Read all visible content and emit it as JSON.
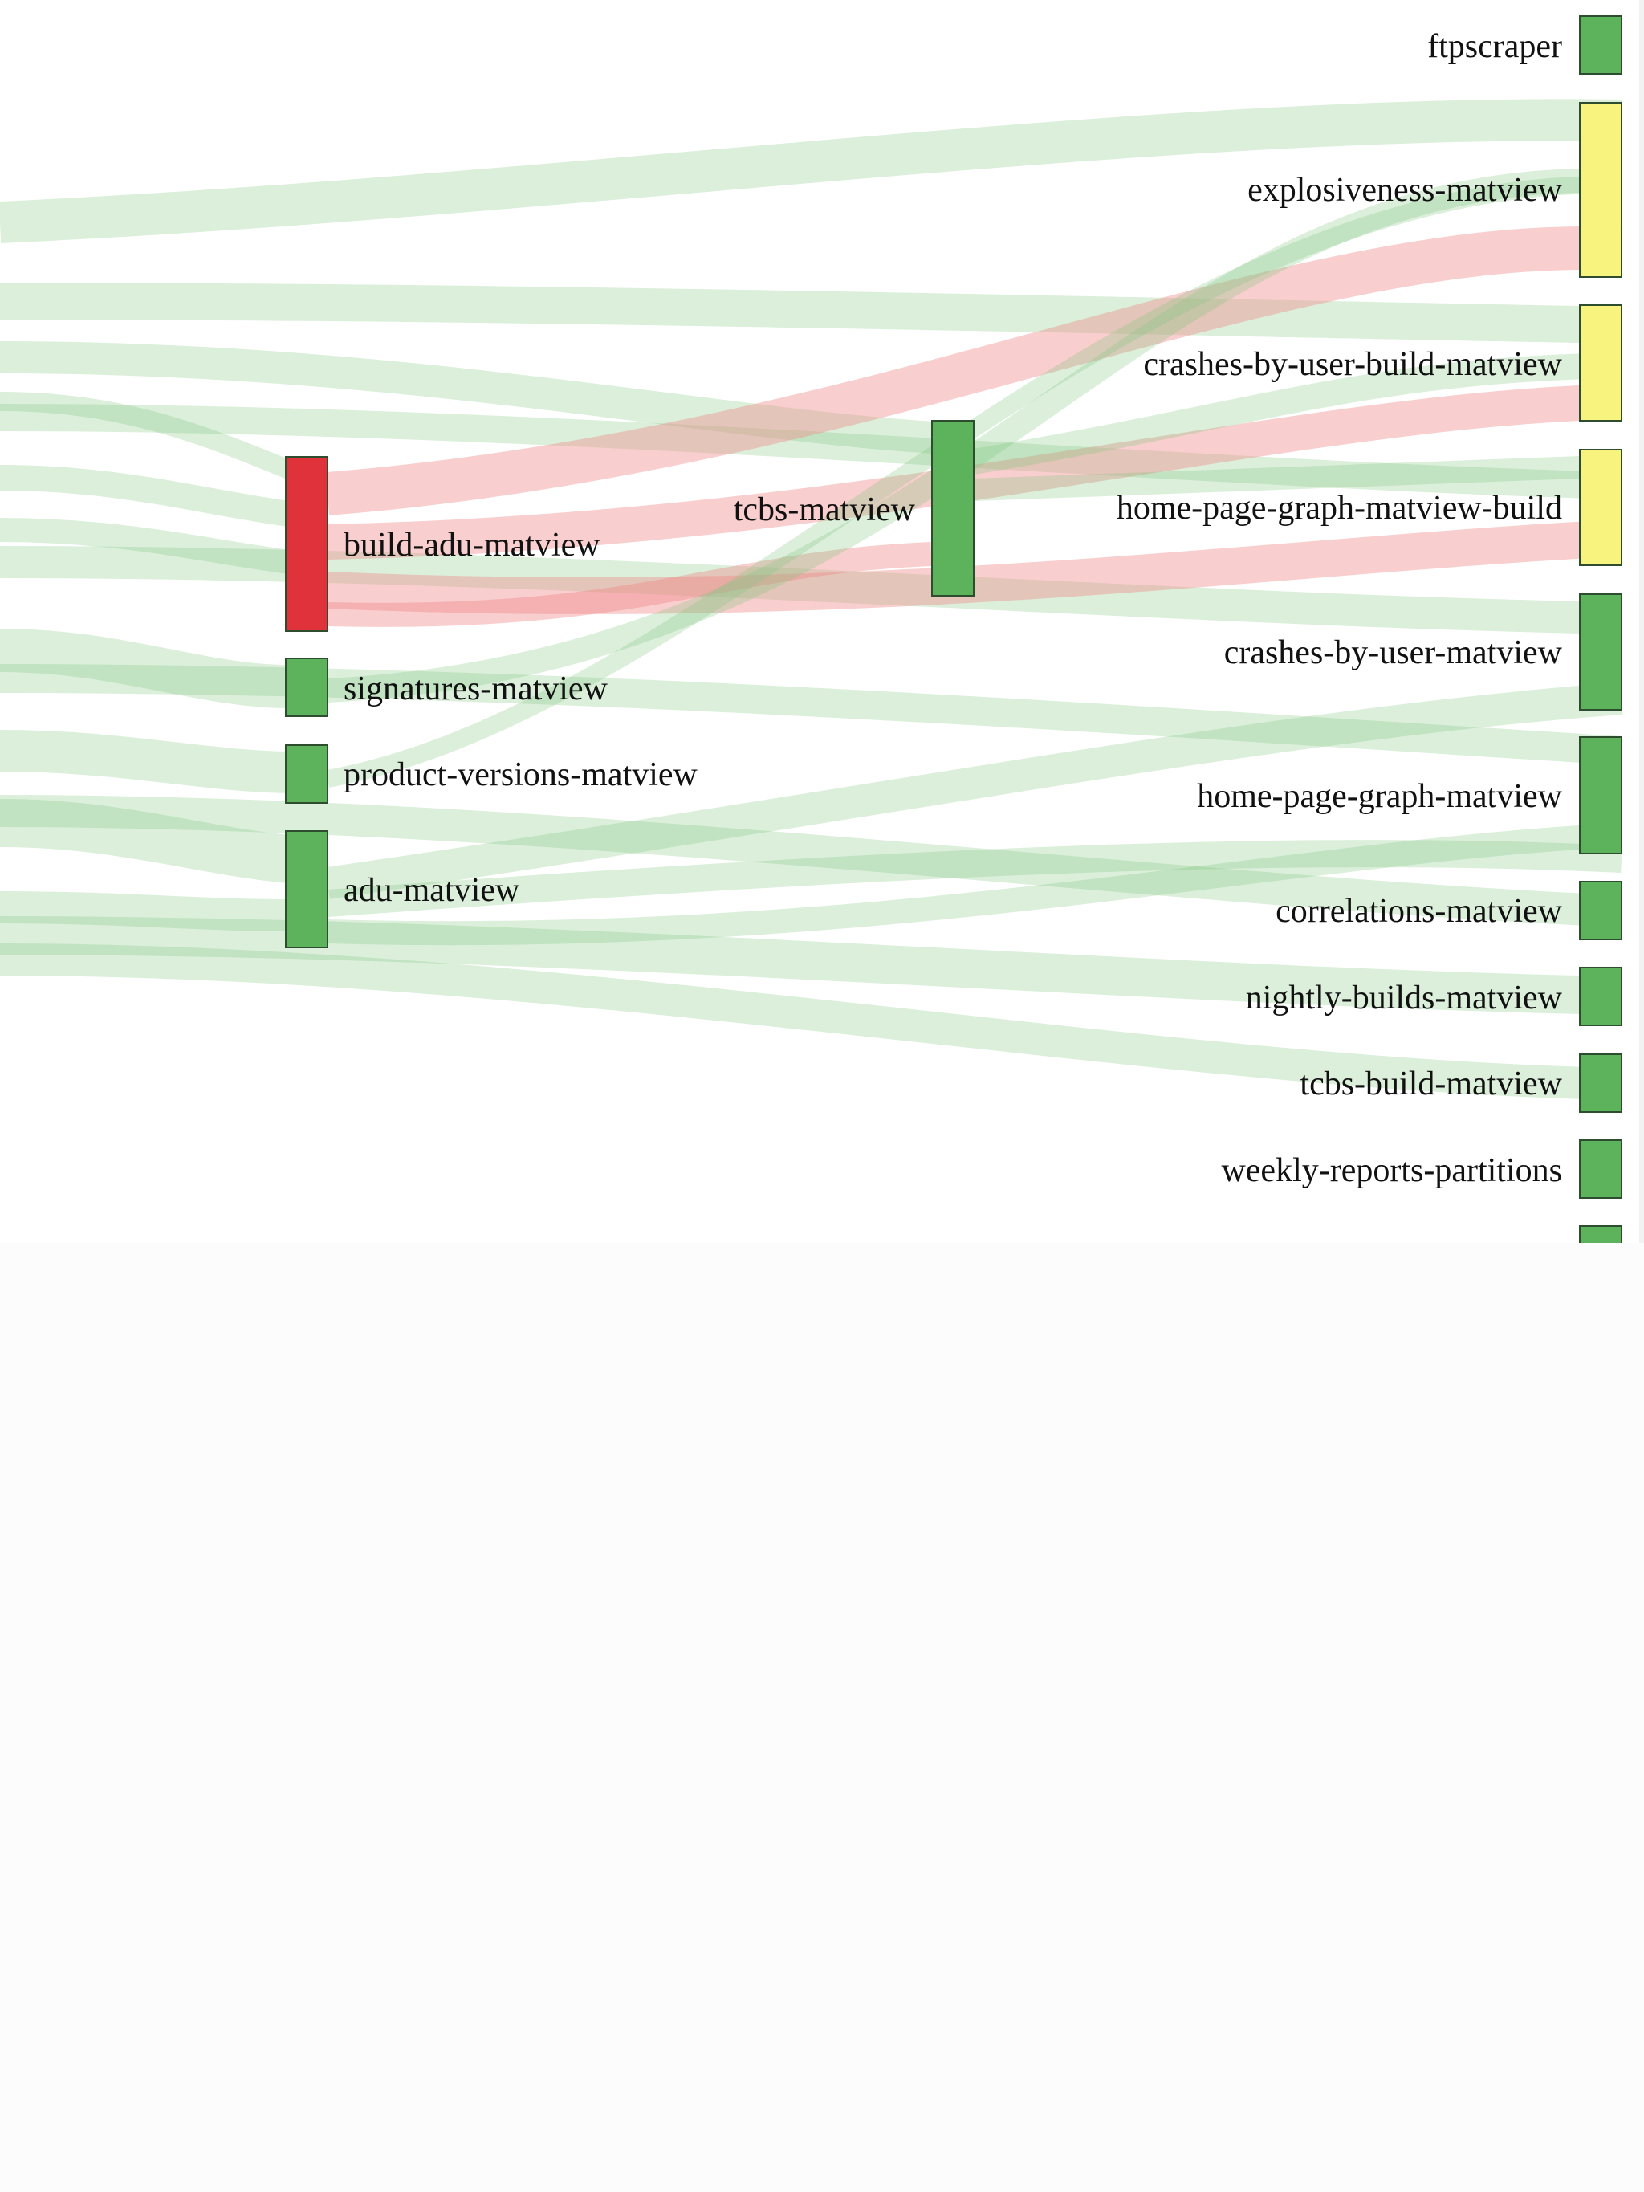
{
  "colors": {
    "status_ok": "#5cb35c",
    "status_warn": "#f7f37e",
    "status_fail": "#e0323b",
    "link_ok": "#7cc57c",
    "link_fail": "#f08a8a",
    "node_stroke": "#2e4d2e"
  },
  "diagram": {
    "type": "sankey",
    "nodes": [
      {
        "id": "build-adu-matview",
        "label": "build-adu-matview",
        "status": "fail"
      },
      {
        "id": "signatures-matview",
        "label": "signatures-matview",
        "status": "ok"
      },
      {
        "id": "product-versions-matview",
        "label": "product-versions-matview",
        "status": "ok"
      },
      {
        "id": "adu-matview",
        "label": "adu-matview",
        "status": "ok"
      },
      {
        "id": "tcbs-matview",
        "label": "tcbs-matview",
        "status": "ok"
      },
      {
        "id": "ftpscraper",
        "label": "ftpscraper",
        "status": "ok"
      },
      {
        "id": "explosiveness-matview",
        "label": "explosiveness-matview",
        "status": "warn"
      },
      {
        "id": "crashes-by-user-build-matview",
        "label": "crashes-by-user-build-matview",
        "status": "warn"
      },
      {
        "id": "home-page-graph-matview-build",
        "label": "home-page-graph-matview-build",
        "status": "warn"
      },
      {
        "id": "crashes-by-user-matview",
        "label": "crashes-by-user-matview",
        "status": "ok"
      },
      {
        "id": "home-page-graph-matview",
        "label": "home-page-graph-matview",
        "status": "ok"
      },
      {
        "id": "correlations-matview",
        "label": "correlations-matview",
        "status": "ok"
      },
      {
        "id": "nightly-builds-matview",
        "label": "nightly-builds-matview",
        "status": "ok"
      },
      {
        "id": "tcbs-build-matview",
        "label": "tcbs-build-matview",
        "status": "ok"
      },
      {
        "id": "weekly-reports-partitions",
        "label": "weekly-reports-partitions",
        "status": "ok"
      },
      {
        "id": "partially-visible",
        "label": "",
        "status": "ok"
      }
    ],
    "links": [
      {
        "source": "build-adu-matview",
        "target": "tcbs-matview",
        "status": "fail"
      },
      {
        "source": "build-adu-matview",
        "target": "explosiveness-matview",
        "status": "fail"
      },
      {
        "source": "build-adu-matview",
        "target": "crashes-by-user-build-matview",
        "status": "fail"
      },
      {
        "source": "build-adu-matview",
        "target": "home-page-graph-matview-build",
        "status": "fail"
      },
      {
        "source": "signatures-matview",
        "target": "explosiveness-matview",
        "status": "ok"
      },
      {
        "source": "product-versions-matview",
        "target": "tcbs-matview",
        "status": "ok"
      },
      {
        "source": "adu-matview",
        "target": "home-page-graph-matview",
        "status": "ok"
      },
      {
        "source": "adu-matview",
        "target": "correlations-matview",
        "status": "ok"
      },
      {
        "source": "adu-matview",
        "target": "crashes-by-user-matview",
        "status": "ok"
      },
      {
        "source": "tcbs-matview",
        "target": "crashes-by-user-build-matview",
        "status": "ok"
      },
      {
        "source": "tcbs-matview",
        "target": "home-page-graph-matview-build",
        "status": "ok"
      }
    ]
  }
}
